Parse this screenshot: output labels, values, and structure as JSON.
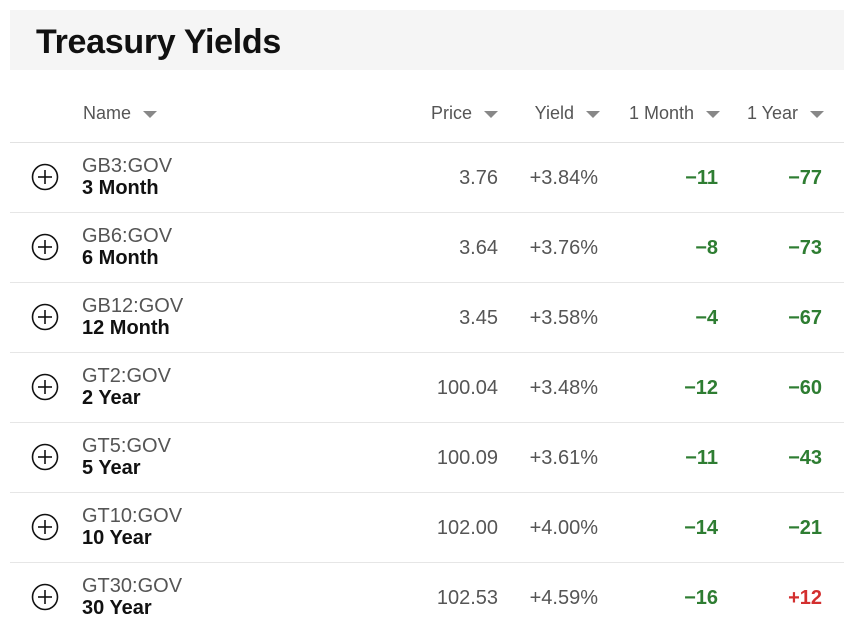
{
  "title": "Treasury Yields",
  "columns": {
    "name": "Name",
    "price": "Price",
    "yield": "Yield",
    "month1": "1 Month",
    "year1": "1 Year"
  },
  "colors": {
    "negative": "#2e7d32",
    "positive": "#d32f2f"
  },
  "rows": [
    {
      "ticker": "GB3:GOV",
      "label": "3 Month",
      "price": "3.76",
      "yield": "+3.84%",
      "month1": "−11",
      "year1": "−77",
      "year1_sign": "negative"
    },
    {
      "ticker": "GB6:GOV",
      "label": "6 Month",
      "price": "3.64",
      "yield": "+3.76%",
      "month1": "−8",
      "year1": "−73",
      "year1_sign": "negative"
    },
    {
      "ticker": "GB12:GOV",
      "label": "12 Month",
      "price": "3.45",
      "yield": "+3.58%",
      "month1": "−4",
      "year1": "−67",
      "year1_sign": "negative"
    },
    {
      "ticker": "GT2:GOV",
      "label": "2 Year",
      "price": "100.04",
      "yield": "+3.48%",
      "month1": "−12",
      "year1": "−60",
      "year1_sign": "negative"
    },
    {
      "ticker": "GT5:GOV",
      "label": "5 Year",
      "price": "100.09",
      "yield": "+3.61%",
      "month1": "−11",
      "year1": "−43",
      "year1_sign": "negative"
    },
    {
      "ticker": "GT10:GOV",
      "label": "10 Year",
      "price": "102.00",
      "yield": "+4.00%",
      "month1": "−14",
      "year1": "−21",
      "year1_sign": "negative"
    },
    {
      "ticker": "GT30:GOV",
      "label": "30 Year",
      "price": "102.53",
      "yield": "+4.59%",
      "month1": "−16",
      "year1": "+12",
      "year1_sign": "positive"
    }
  ]
}
